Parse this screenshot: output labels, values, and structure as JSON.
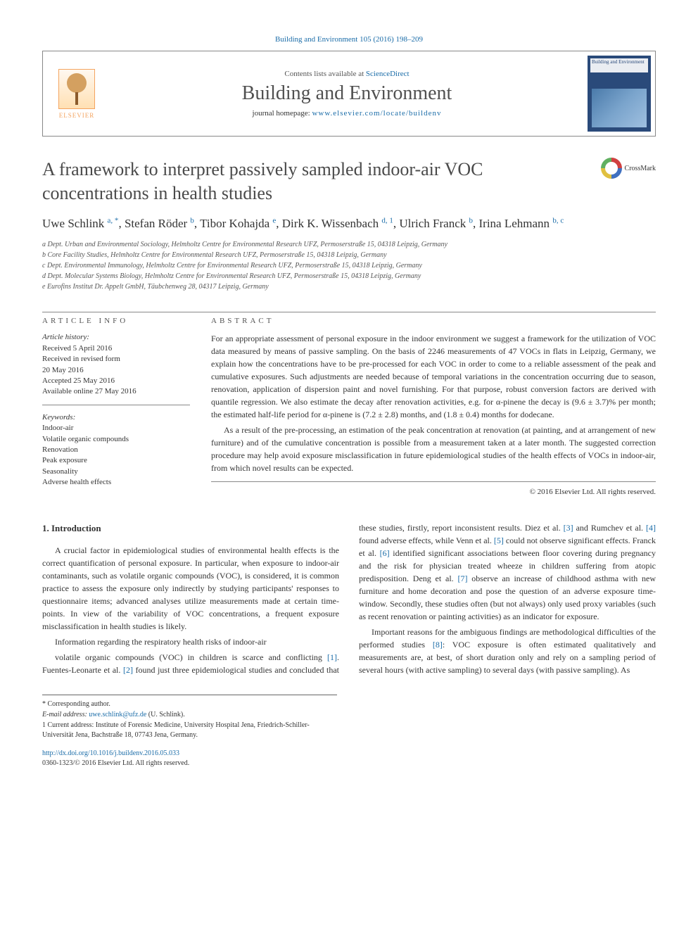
{
  "journal_reference": "Building and Environment 105 (2016) 198–209",
  "header": {
    "contents_prefix": "Contents lists available at ",
    "contents_link": "ScienceDirect",
    "journal_name": "Building and Environment",
    "homepage_prefix": "journal homepage: ",
    "homepage_url": "www.elsevier.com/locate/buildenv",
    "publisher": "ELSEVIER",
    "cover_label": "Building and Environment"
  },
  "crossmark_label": "CrossMark",
  "article": {
    "title": "A framework to interpret passively sampled indoor-air VOC concentrations in health studies",
    "authors_html": "Uwe Schlink <span class='sup'>a, *</span>, Stefan Röder <span class='sup'>b</span>, Tibor Kohajda <span class='sup'>e</span>, Dirk K. Wissenbach <span class='sup'>d, 1</span>, Ulrich Franck <span class='sup'>b</span>, Irina Lehmann <span class='sup'>b, c</span>",
    "affiliations": [
      "a Dept. Urban and Environmental Sociology, Helmholtz Centre for Environmental Research UFZ, Permoserstraße 15, 04318 Leipzig, Germany",
      "b Core Facility Studies, Helmholtz Centre for Environmental Research UFZ, Permoserstraße 15, 04318 Leipzig, Germany",
      "c Dept. Environmental Immunology, Helmholtz Centre for Environmental Research UFZ, Permoserstraße 15, 04318 Leipzig, Germany",
      "d Dept. Molecular Systems Biology, Helmholtz Centre for Environmental Research UFZ, Permoserstraße 15, 04318 Leipzig, Germany",
      "e Eurofins Institut Dr. Appelt GmbH, Täubchenweg 28, 04317 Leipzig, Germany"
    ]
  },
  "info": {
    "heading": "ARTICLE INFO",
    "history_head": "Article history:",
    "history": [
      "Received 5 April 2016",
      "Received in revised form",
      "20 May 2016",
      "Accepted 25 May 2016",
      "Available online 27 May 2016"
    ],
    "keywords_head": "Keywords:",
    "keywords": [
      "Indoor-air",
      "Volatile organic compounds",
      "Renovation",
      "Peak exposure",
      "Seasonality",
      "Adverse health effects"
    ]
  },
  "abstract": {
    "heading": "ABSTRACT",
    "p1": "For an appropriate assessment of personal exposure in the indoor environment we suggest a framework for the utilization of VOC data measured by means of passive sampling. On the basis of 2246 measurements of 47 VOCs in flats in Leipzig, Germany, we explain how the concentrations have to be pre-processed for each VOC in order to come to a reliable assessment of the peak and cumulative exposures. Such adjustments are needed because of temporal variations in the concentration occurring due to season, renovation, application of dispersion paint and novel furnishing. For that purpose, robust conversion factors are derived with quantile regression. We also estimate the decay after renovation activities, e.g. for α-pinene the decay is (9.6 ± 3.7)% per month; the estimated half-life period for α-pinene is (7.2 ± 2.8) months, and (1.8 ± 0.4) months for dodecane.",
    "p2": "As a result of the pre-processing, an estimation of the peak concentration at renovation (at painting, and at arrangement of new furniture) and of the cumulative concentration is possible from a measurement taken at a later month. The suggested correction procedure may help avoid exposure misclassification in future epidemiological studies of the health effects of VOCs in indoor-air, from which novel results can be expected.",
    "copyright": "© 2016 Elsevier Ltd. All rights reserved."
  },
  "body": {
    "section_1_heading": "1. Introduction",
    "p1": "A crucial factor in epidemiological studies of environmental health effects is the correct quantification of personal exposure. In particular, when exposure to indoor-air contaminants, such as volatile organic compounds (VOC), is considered, it is common practice to assess the exposure only indirectly by studying participants' responses to questionnaire items; advanced analyses utilize measurements made at certain time-points. In view of the variability of VOC concentrations, a frequent exposure misclassification in health studies is likely.",
    "p2": "Information regarding the respiratory health risks of indoor-air",
    "p3_html": "volatile organic compounds (VOC) in children is scarce and conflicting <span class='ref-link'>[1]</span>. Fuentes-Leonarte et al. <span class='ref-link'>[2]</span> found just three epidemiological studies and concluded that these studies, firstly, report inconsistent results. Diez et al. <span class='ref-link'>[3]</span> and Rumchev et al. <span class='ref-link'>[4]</span> found adverse effects, while Venn et al. <span class='ref-link'>[5]</span> could not observe significant effects. Franck et al. <span class='ref-link'>[6]</span> identified significant associations between floor covering during pregnancy and the risk for physician treated wheeze in children suffering from atopic predisposition. Deng et al. <span class='ref-link'>[7]</span> observe an increase of childhood asthma with new furniture and home decoration and pose the question of an adverse exposure time-window. Secondly, these studies often (but not always) only used proxy variables (such as recent renovation or painting activities) as an indicator for exposure.",
    "p4_html": "Important reasons for the ambiguous findings are methodological difficulties of the performed studies <span class='ref-link'>[8]</span>: VOC exposure is often estimated qualitatively and measurements are, at best, of short duration only and rely on a sampling period of several hours (with active sampling) to several days (with passive sampling). As"
  },
  "footnotes": {
    "corr": "* Corresponding author.",
    "email_label": "E-mail address: ",
    "email": "uwe.schlink@ufz.de",
    "email_suffix": " (U. Schlink).",
    "fn1": "1 Current address: Institute of Forensic Medicine, University Hospital Jena, Friedrich-Schiller-Universität Jena, Bachstraße 18, 07743 Jena, Germany."
  },
  "doi": {
    "url": "http://dx.doi.org/10.1016/j.buildenv.2016.05.033",
    "issn_copy": "0360-1323/© 2016 Elsevier Ltd. All rights reserved."
  },
  "colors": {
    "link": "#1a6ca8",
    "text": "#333333",
    "border": "#888888"
  }
}
